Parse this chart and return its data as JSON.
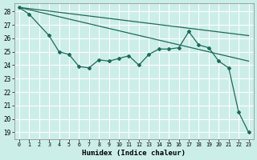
{
  "bg_color": "#cceee8",
  "grid_color": "#ffffff",
  "line_color": "#1a6b5a",
  "xlabel": "Humidex (Indice chaleur)",
  "xlim": [
    -0.5,
    23.5
  ],
  "ylim": [
    18.5,
    28.6
  ],
  "yticks": [
    19,
    20,
    21,
    22,
    23,
    24,
    25,
    26,
    27,
    28
  ],
  "xticks": [
    0,
    1,
    2,
    3,
    4,
    5,
    6,
    7,
    8,
    9,
    10,
    11,
    12,
    13,
    14,
    15,
    16,
    17,
    18,
    19,
    20,
    21,
    22,
    23
  ],
  "trend1_x": [
    0,
    23
  ],
  "trend1_y": [
    28.3,
    26.2
  ],
  "trend2_x": [
    0,
    23
  ],
  "trend2_y": [
    28.3,
    24.3
  ],
  "jagged_x": [
    0,
    1,
    3,
    4,
    5,
    6,
    7,
    8,
    9,
    10,
    11,
    12,
    13,
    14,
    15,
    16,
    17,
    18,
    19,
    20,
    21,
    22,
    23
  ],
  "jagged_y": [
    28.3,
    27.8,
    26.2,
    25.0,
    24.8,
    23.9,
    23.8,
    24.4,
    24.3,
    24.5,
    24.7,
    24.0,
    24.8,
    25.2,
    25.2,
    25.3,
    26.5,
    25.5,
    25.3,
    24.3,
    23.8,
    20.5,
    19.0
  ]
}
